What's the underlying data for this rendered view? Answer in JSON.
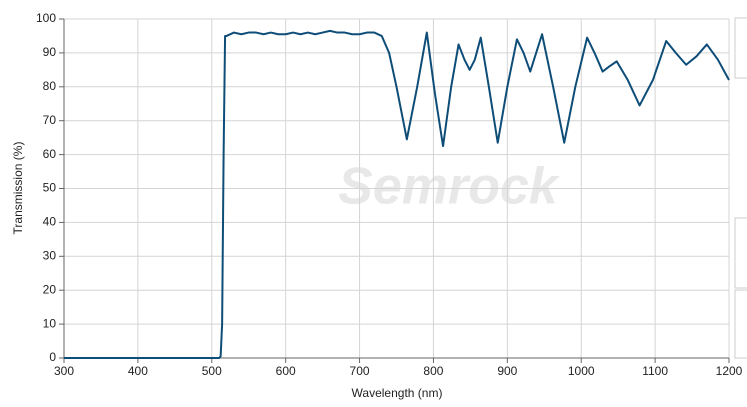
{
  "chart_data": {
    "type": "line",
    "x_label": "Wavelength (nm)",
    "y_label": "Transmission (%)",
    "watermark": "Semrock",
    "xlim": [
      300,
      1200
    ],
    "xticks": [
      300,
      400,
      500,
      600,
      700,
      800,
      900,
      1000,
      1100,
      1200
    ],
    "ylim": [
      0,
      100
    ],
    "yticks": [
      0,
      10,
      20,
      30,
      40,
      50,
      60,
      70,
      80,
      90,
      100
    ],
    "grid": true,
    "series": [
      {
        "color": "#0e4d78",
        "x": [
          300,
          400,
          500,
          510,
          512,
          514,
          516,
          518,
          520,
          530,
          540,
          550,
          560,
          570,
          580,
          590,
          600,
          610,
          620,
          630,
          640,
          650,
          660,
          670,
          680,
          690,
          700,
          710,
          720,
          730,
          740,
          750,
          764,
          778,
          791,
          802,
          813,
          824,
          834,
          842,
          849,
          856,
          864,
          875,
          887,
          900,
          913,
          922,
          931,
          939,
          947,
          962,
          977,
          992,
          1008,
          1018,
          1029,
          1038,
          1048,
          1063,
          1079,
          1097,
          1115,
          1128,
          1142,
          1156,
          1170,
          1185,
          1200
        ],
        "values": [
          0,
          0,
          0,
          0,
          0.5,
          10,
          60,
          95,
          95,
          96,
          95.5,
          96,
          96,
          95.5,
          96,
          95.5,
          95.5,
          96,
          95.5,
          96,
          95.5,
          96,
          96.5,
          96,
          96,
          95.5,
          95.5,
          96,
          96,
          95,
          90,
          80,
          64.5,
          80,
          96,
          78,
          62.5,
          80,
          92.5,
          88,
          85,
          88,
          94.5,
          80,
          63.5,
          80,
          94,
          90,
          84.5,
          90,
          95.5,
          80,
          63.5,
          80,
          94.5,
          90,
          84.5,
          86,
          87.5,
          82,
          74.5,
          82,
          93.5,
          90,
          86.5,
          89,
          92.5,
          88,
          82
        ]
      }
    ]
  }
}
